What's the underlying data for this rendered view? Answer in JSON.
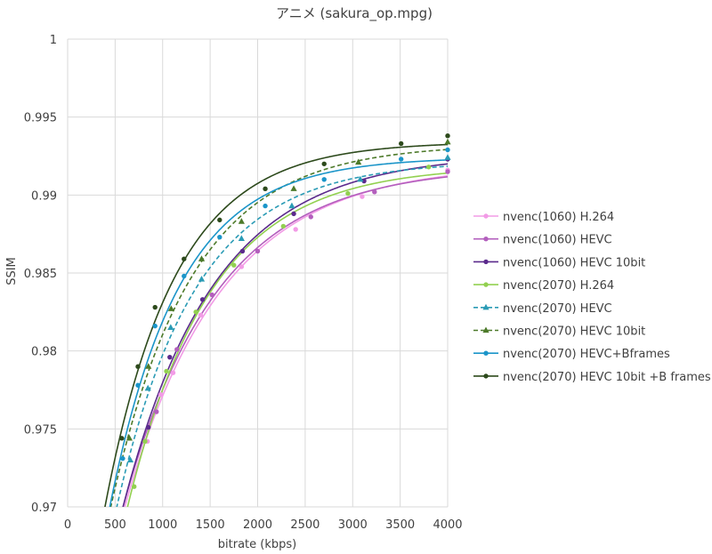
{
  "chart_data": {
    "type": "line",
    "title": "アニメ (sakura_op.mpg)",
    "xlabel": "bitrate (kbps)",
    "ylabel": "SSIM",
    "xlim": [
      0,
      4000
    ],
    "ylim": [
      0.97,
      1.0
    ],
    "xticks": [
      "0",
      "500",
      "1000",
      "1500",
      "2000",
      "2500",
      "3000",
      "3500",
      "4000"
    ],
    "yticks": [
      "0.97",
      "0.975",
      "0.98",
      "0.985",
      "0.99",
      "0.995",
      "1"
    ],
    "grid": true,
    "legend_position": "right",
    "series": [
      {
        "name": "nvenc(1060) H.264",
        "color": "#f29be6",
        "marker": "circle",
        "dash": false,
        "x": [
          840,
          980,
          1110,
          1400,
          1830,
          2400,
          3100,
          4000
        ],
        "y": [
          0.9742,
          0.9772,
          0.9786,
          0.9823,
          0.9854,
          0.9878,
          0.9899,
          0.9916
        ]
      },
      {
        "name": "nvenc(1060) HEVC",
        "color": "#b35fbd",
        "marker": "circle",
        "dash": false,
        "x": [
          935,
          1150,
          1520,
          2000,
          2560,
          3230,
          4000
        ],
        "y": [
          0.9761,
          0.9801,
          0.9836,
          0.9864,
          0.9886,
          0.9902,
          0.9915
        ]
      },
      {
        "name": "nvenc(1060) HEVC 10bit",
        "color": "#5b2a8c",
        "marker": "circle",
        "dash": false,
        "x": [
          850,
          1075,
          1420,
          1840,
          2380,
          3120,
          4000
        ],
        "y": [
          0.9751,
          0.9796,
          0.9833,
          0.9864,
          0.9888,
          0.9909,
          0.9923
        ]
      },
      {
        "name": "nvenc(2070) H.264",
        "color": "#92d050",
        "marker": "circle",
        "dash": false,
        "x": [
          700,
          815,
          1040,
          1350,
          1750,
          2270,
          2950,
          3800
        ],
        "y": [
          0.9713,
          0.9742,
          0.9787,
          0.9825,
          0.9855,
          0.988,
          0.9901,
          0.9918
        ]
      },
      {
        "name": "nvenc(2070) HEVC",
        "color": "#2a9bb5",
        "marker": "triangle",
        "dash": true,
        "x": [
          660,
          845,
          1085,
          1410,
          1830,
          2360,
          3080,
          4000
        ],
        "y": [
          0.973,
          0.9776,
          0.9815,
          0.9846,
          0.9872,
          0.9893,
          0.991,
          0.9924
        ]
      },
      {
        "name": "nvenc(2070) HEVC 10bit",
        "color": "#4d7a2a",
        "marker": "triangle",
        "dash": true,
        "x": [
          650,
          850,
          1090,
          1410,
          1830,
          2380,
          3060,
          4000
        ],
        "y": [
          0.9744,
          0.979,
          0.9827,
          0.9859,
          0.9883,
          0.9904,
          0.9921,
          0.9934
        ]
      },
      {
        "name": "nvenc(2070) HEVC+Bframes",
        "color": "#1b95c9",
        "marker": "circle",
        "dash": false,
        "x": [
          580,
          740,
          920,
          1225,
          1600,
          2080,
          2700,
          3510,
          4000
        ],
        "y": [
          0.9731,
          0.9778,
          0.9816,
          0.9848,
          0.9873,
          0.9893,
          0.991,
          0.9923,
          0.9929
        ]
      },
      {
        "name": "nvenc(2070) HEVC 10bit +B frames",
        "color": "#2d4a1c",
        "marker": "circle",
        "dash": false,
        "x": [
          570,
          740,
          920,
          1225,
          1600,
          2080,
          2700,
          3510,
          4000
        ],
        "y": [
          0.9744,
          0.979,
          0.9828,
          0.9859,
          0.9884,
          0.9904,
          0.992,
          0.9933,
          0.9938
        ]
      }
    ]
  }
}
